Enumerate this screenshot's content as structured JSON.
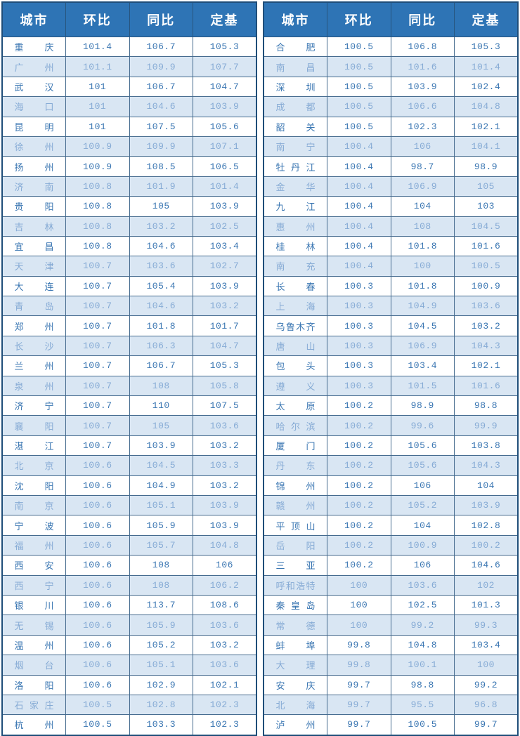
{
  "colors": {
    "header_bg": "#2e74b5",
    "header_text": "#ffffff",
    "row_odd_bg": "#ffffff",
    "row_even_bg": "#d9e6f3",
    "row_odd_text": "#3a76b2",
    "row_even_text": "#86abd5",
    "grid_border": "#446a8e",
    "outer_border": "#1f4e79"
  },
  "chart_data": {
    "type": "table",
    "columns": [
      "城市",
      "环比",
      "同比",
      "定基"
    ],
    "tables": [
      {
        "name": "left-table",
        "rows": [
          [
            "重庆",
            "101.4",
            "106.7",
            "105.3"
          ],
          [
            "广州",
            "101.1",
            "109.9",
            "107.7"
          ],
          [
            "武汉",
            "101",
            "106.7",
            "104.7"
          ],
          [
            "海口",
            "101",
            "104.6",
            "103.9"
          ],
          [
            "昆明",
            "101",
            "107.5",
            "105.6"
          ],
          [
            "徐州",
            "100.9",
            "109.9",
            "107.1"
          ],
          [
            "扬州",
            "100.9",
            "108.5",
            "106.5"
          ],
          [
            "济南",
            "100.8",
            "101.9",
            "101.4"
          ],
          [
            "贵阳",
            "100.8",
            "105",
            "103.9"
          ],
          [
            "吉林",
            "100.8",
            "103.2",
            "102.5"
          ],
          [
            "宜昌",
            "100.8",
            "104.6",
            "103.4"
          ],
          [
            "天津",
            "100.7",
            "103.6",
            "102.7"
          ],
          [
            "大连",
            "100.7",
            "105.4",
            "103.9"
          ],
          [
            "青岛",
            "100.7",
            "104.6",
            "103.2"
          ],
          [
            "郑州",
            "100.7",
            "101.8",
            "101.7"
          ],
          [
            "长沙",
            "100.7",
            "106.3",
            "104.7"
          ],
          [
            "兰州",
            "100.7",
            "106.7",
            "105.3"
          ],
          [
            "泉州",
            "100.7",
            "108",
            "105.8"
          ],
          [
            "济宁",
            "100.7",
            "110",
            "107.5"
          ],
          [
            "襄阳",
            "100.7",
            "105",
            "103.6"
          ],
          [
            "湛江",
            "100.7",
            "103.9",
            "103.2"
          ],
          [
            "北京",
            "100.6",
            "104.5",
            "103.3"
          ],
          [
            "沈阳",
            "100.6",
            "104.9",
            "103.2"
          ],
          [
            "南京",
            "100.6",
            "105.1",
            "103.9"
          ],
          [
            "宁波",
            "100.6",
            "105.9",
            "103.9"
          ],
          [
            "福州",
            "100.6",
            "105.7",
            "104.8"
          ],
          [
            "西安",
            "100.6",
            "108",
            "106"
          ],
          [
            "西宁",
            "100.6",
            "108",
            "106.2"
          ],
          [
            "银川",
            "100.6",
            "113.7",
            "108.6"
          ],
          [
            "无锡",
            "100.6",
            "105.9",
            "103.6"
          ],
          [
            "温州",
            "100.6",
            "105.2",
            "103.2"
          ],
          [
            "烟台",
            "100.6",
            "105.1",
            "103.6"
          ],
          [
            "洛阳",
            "100.6",
            "102.9",
            "102.1"
          ],
          [
            "石家庄",
            "100.5",
            "102.8",
            "102.3"
          ],
          [
            "杭州",
            "100.5",
            "103.3",
            "102.3"
          ]
        ]
      },
      {
        "name": "right-table",
        "rows": [
          [
            "合肥",
            "100.5",
            "106.8",
            "105.3"
          ],
          [
            "南昌",
            "100.5",
            "101.6",
            "101.4"
          ],
          [
            "深圳",
            "100.5",
            "103.9",
            "102.4"
          ],
          [
            "成都",
            "100.5",
            "106.6",
            "104.8"
          ],
          [
            "韶关",
            "100.5",
            "102.3",
            "102.1"
          ],
          [
            "南宁",
            "100.4",
            "106",
            "104.1"
          ],
          [
            "牡丹江",
            "100.4",
            "98.7",
            "98.9"
          ],
          [
            "金华",
            "100.4",
            "106.9",
            "105"
          ],
          [
            "九江",
            "100.4",
            "104",
            "103"
          ],
          [
            "惠州",
            "100.4",
            "108",
            "104.5"
          ],
          [
            "桂林",
            "100.4",
            "101.8",
            "101.6"
          ],
          [
            "南充",
            "100.4",
            "100",
            "100.5"
          ],
          [
            "长春",
            "100.3",
            "101.8",
            "100.9"
          ],
          [
            "上海",
            "100.3",
            "104.9",
            "103.6"
          ],
          [
            "乌鲁木齐",
            "100.3",
            "104.5",
            "103.2"
          ],
          [
            "唐山",
            "100.3",
            "106.9",
            "104.3"
          ],
          [
            "包头",
            "100.3",
            "103.4",
            "102.1"
          ],
          [
            "遵义",
            "100.3",
            "101.5",
            "101.6"
          ],
          [
            "太原",
            "100.2",
            "98.9",
            "98.8"
          ],
          [
            "哈尔滨",
            "100.2",
            "99.6",
            "99.9"
          ],
          [
            "厦门",
            "100.2",
            "105.6",
            "103.8"
          ],
          [
            "丹东",
            "100.2",
            "105.6",
            "104.3"
          ],
          [
            "锦州",
            "100.2",
            "106",
            "104"
          ],
          [
            "赣州",
            "100.2",
            "105.2",
            "103.9"
          ],
          [
            "平顶山",
            "100.2",
            "104",
            "102.8"
          ],
          [
            "岳阳",
            "100.2",
            "100.9",
            "100.2"
          ],
          [
            "三亚",
            "100.2",
            "106",
            "104.6"
          ],
          [
            "呼和浩特",
            "100",
            "103.6",
            "102"
          ],
          [
            "秦皇岛",
            "100",
            "102.5",
            "101.3"
          ],
          [
            "常德",
            "100",
            "99.2",
            "99.3"
          ],
          [
            "蚌埠",
            "99.8",
            "104.8",
            "103.4"
          ],
          [
            "大理",
            "99.8",
            "100.1",
            "100"
          ],
          [
            "安庆",
            "99.7",
            "98.8",
            "99.2"
          ],
          [
            "北海",
            "99.7",
            "95.5",
            "96.8"
          ],
          [
            "泸州",
            "99.7",
            "100.5",
            "99.7"
          ]
        ]
      }
    ]
  }
}
